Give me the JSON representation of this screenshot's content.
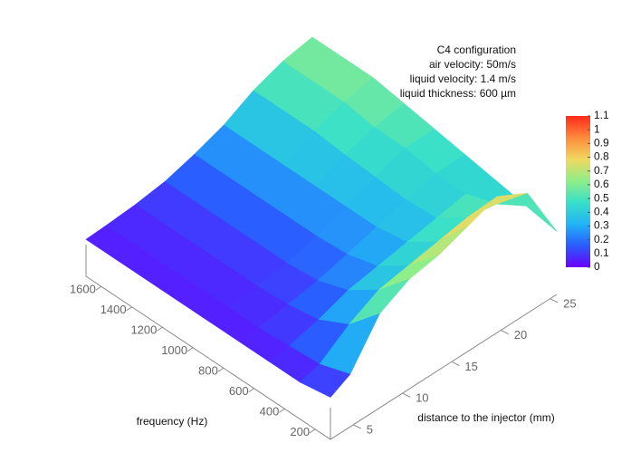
{
  "chart_data": {
    "type": "surface",
    "annotations": [
      "C4 configuration",
      "air velocity: 50m/s",
      "liquid velocity: 1.4 m/s",
      "liquid thickness: 600 µm"
    ],
    "x_label": "frequency (Hz)",
    "y_label": "distance to the injector (mm)",
    "x": [
      100,
      300,
      500,
      700,
      900,
      1100,
      1300,
      1500,
      1700
    ],
    "y": [
      3,
      5,
      8,
      11,
      14,
      17,
      20,
      23,
      26
    ],
    "z": [
      [
        0.1,
        0.05,
        0.05,
        0.05,
        0.05,
        0.05,
        0.05,
        0.05,
        0.05
      ],
      [
        0.2,
        0.1,
        0.08,
        0.06,
        0.06,
        0.06,
        0.06,
        0.06,
        0.06
      ],
      [
        0.6,
        0.3,
        0.15,
        0.1,
        0.08,
        0.08,
        0.08,
        0.08,
        0.08
      ],
      [
        0.75,
        0.45,
        0.25,
        0.15,
        0.12,
        0.12,
        0.12,
        0.12,
        0.12
      ],
      [
        0.8,
        0.5,
        0.3,
        0.22,
        0.2,
        0.2,
        0.2,
        0.2,
        0.2
      ],
      [
        0.9,
        0.55,
        0.35,
        0.3,
        0.3,
        0.3,
        0.3,
        0.3,
        0.3
      ],
      [
        1.0,
        0.6,
        0.4,
        0.38,
        0.4,
        0.42,
        0.45,
        0.45,
        0.45
      ],
      [
        0.85,
        0.55,
        0.45,
        0.45,
        0.5,
        0.5,
        0.55,
        0.55,
        0.55
      ],
      [
        0.3,
        0.35,
        0.4,
        0.45,
        0.5,
        0.55,
        0.6,
        0.6,
        0.6
      ]
    ],
    "xlim": [
      100,
      1700
    ],
    "xticks": [
      200,
      400,
      600,
      800,
      1000,
      1200,
      1400,
      1600
    ],
    "ylim": [
      3,
      26
    ],
    "yticks": [
      5,
      10,
      15,
      20,
      25
    ],
    "clim": [
      0,
      1.1
    ],
    "colorbar_ticks": [
      0,
      0.1,
      0.2,
      0.3,
      0.4,
      0.5,
      0.6,
      0.7,
      0.8,
      0.9,
      1,
      1.1
    ],
    "colormap": [
      "#6a00ff",
      "#2a5cff",
      "#22b4f5",
      "#38e0c8",
      "#90ee88",
      "#f0d860",
      "#ff8a3c",
      "#ff2a1a"
    ]
  }
}
